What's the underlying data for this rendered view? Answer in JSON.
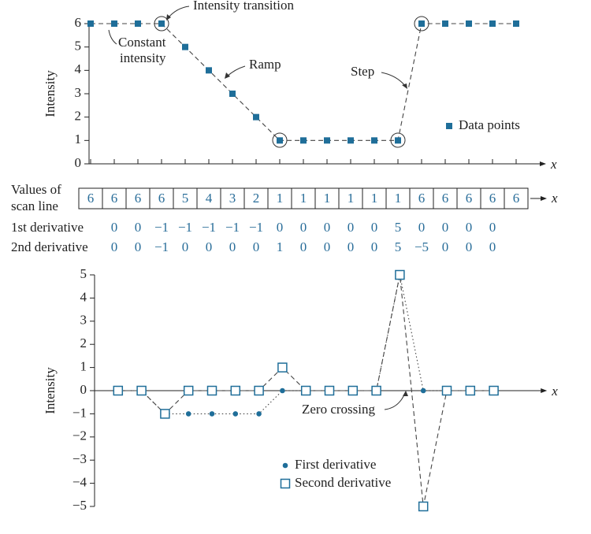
{
  "chart_data": [
    {
      "type": "line",
      "y_label": "Intensity",
      "x_label": "x",
      "x": [
        0,
        1,
        2,
        3,
        4,
        5,
        6,
        7,
        8,
        9,
        10,
        11,
        12,
        13,
        14,
        15,
        16,
        17,
        18
      ],
      "series": [
        {
          "name": "Data points",
          "color": "#1f6e99",
          "line": "dashed",
          "marker": "square",
          "values": [
            6,
            6,
            6,
            6,
            5,
            4,
            3,
            2,
            1,
            1,
            1,
            1,
            1,
            1,
            6,
            6,
            6,
            6,
            6
          ]
        }
      ],
      "xlim": [
        0,
        19
      ],
      "ylim": [
        0,
        6
      ],
      "yticks": [
        0,
        1,
        2,
        3,
        4,
        5,
        6
      ],
      "annotations": [
        {
          "text": "Intensity transition"
        },
        {
          "lines": [
            "Constant",
            "intensity"
          ]
        },
        {
          "text": "Ramp"
        },
        {
          "text": "Step"
        }
      ]
    },
    {
      "type": "line",
      "y_label": "Intensity",
      "x_label": "x",
      "x": [
        1,
        2,
        3,
        4,
        5,
        6,
        7,
        8,
        9,
        10,
        11,
        12,
        13,
        14,
        15,
        16,
        17
      ],
      "series": [
        {
          "name": "First derivative",
          "color": "#1f6e99",
          "line": "dotted",
          "marker": "circle",
          "values": [
            0,
            0,
            -1,
            -1,
            -1,
            -1,
            -1,
            0,
            0,
            0,
            0,
            0,
            5,
            0,
            0,
            0,
            0
          ]
        },
        {
          "name": "Second derivative",
          "color": "#1f6e99",
          "line": "dashed",
          "marker": "hollow-square",
          "values": [
            0,
            0,
            -1,
            0,
            0,
            0,
            0,
            1,
            0,
            0,
            0,
            0,
            5,
            -5,
            0,
            0,
            0
          ]
        }
      ],
      "xlim": [
        0,
        19
      ],
      "ylim": [
        -5,
        5
      ],
      "yticks": [
        {
          "value": -5,
          "label": "−5"
        },
        {
          "value": -4,
          "label": "−4"
        },
        {
          "value": -3,
          "label": "−3"
        },
        {
          "value": -2,
          "label": "−2"
        },
        {
          "value": -1,
          "label": "−1"
        },
        0,
        1,
        2,
        3,
        4,
        5
      ],
      "annotations": [
        {
          "text": "Zero crossing"
        }
      ]
    }
  ],
  "scan_table": {
    "label": [
      "Values of",
      "scan line"
    ],
    "axis_label": "x",
    "values": [
      6,
      6,
      6,
      6,
      5,
      4,
      3,
      2,
      1,
      1,
      1,
      1,
      1,
      1,
      6,
      6,
      6,
      6,
      6
    ],
    "rows": [
      {
        "label": "1st derivative",
        "cells": [
          "0",
          "0",
          "−1",
          "−1",
          "−1",
          "−1",
          "−1",
          "0",
          "0",
          "0",
          "0",
          "0",
          "5",
          "0",
          "0",
          "0",
          "0"
        ]
      },
      {
        "label": "2nd derivative",
        "cells": [
          "0",
          "0",
          "−1",
          "0",
          "0",
          "0",
          "0",
          "1",
          "0",
          "0",
          "0",
          "0",
          "5",
          "−5",
          "0",
          "0",
          "0"
        ]
      }
    ]
  }
}
